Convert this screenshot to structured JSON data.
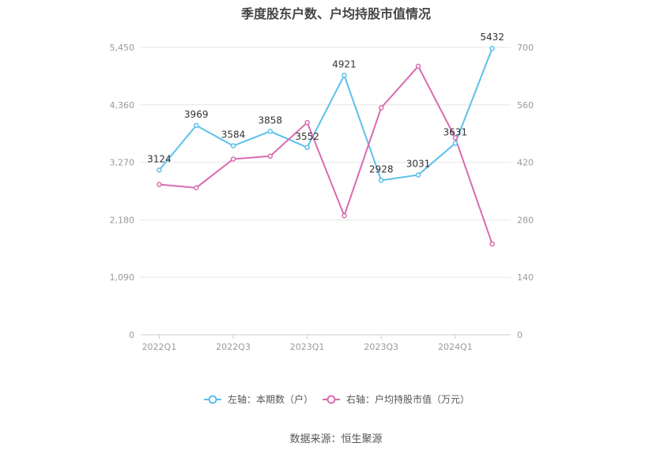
{
  "chart_data": {
    "type": "line",
    "title": "季度股东户数、户均持股市值情况",
    "categories": [
      "2022Q1",
      "2022Q2",
      "2022Q3",
      "2022Q4",
      "2023Q1",
      "2023Q2",
      "2023Q3",
      "2023Q4",
      "2024Q1",
      "2024Q2"
    ],
    "x_tick_labels": [
      "2022Q1",
      "2022Q3",
      "2023Q1",
      "2023Q3",
      "2024Q1"
    ],
    "series": [
      {
        "name": "左轴：本期数（户）",
        "axis": "left",
        "color": "#5bc0eb",
        "values": [
          3124,
          3969,
          3584,
          3858,
          3552,
          4921,
          2928,
          3031,
          3631,
          5432
        ]
      },
      {
        "name": "右轴：户均持股市值（万元）",
        "axis": "right",
        "color": "#d96bb0",
        "values": [
          366,
          358,
          428,
          435,
          517,
          290,
          553,
          654,
          480,
          221
        ]
      }
    ],
    "yleft": {
      "ylim": [
        0,
        5450
      ],
      "ticks": [
        "0",
        "1,090",
        "2,180",
        "3,270",
        "4,360",
        "5,450"
      ]
    },
    "yright": {
      "ylim": [
        0,
        700
      ],
      "ticks": [
        "0",
        "140",
        "280",
        "420",
        "560",
        "700"
      ]
    },
    "grid": true,
    "legend_position": "bottom"
  },
  "source": "数据来源：恒生聚源"
}
